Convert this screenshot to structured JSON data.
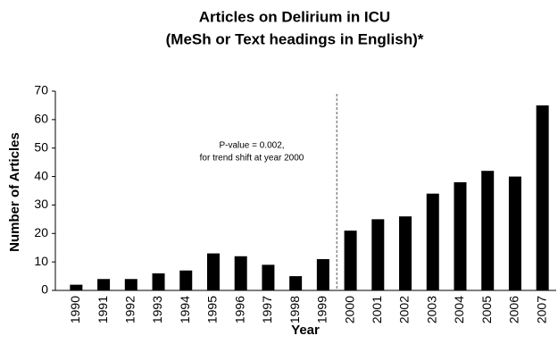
{
  "chart_data": {
    "type": "bar",
    "title": [
      "Articles on Delirium in ICU",
      "(MeSh or Text headings in English)*"
    ],
    "x_label": "Year",
    "y_label": "Number of Articles",
    "annotation": [
      "P-value = 0.002,",
      "for trend shift at year 2000"
    ],
    "categories": [
      "1990",
      "1991",
      "1992",
      "1993",
      "1994",
      "1995",
      "1996",
      "1997",
      "1998",
      "1999",
      "2000",
      "2001",
      "2002",
      "2003",
      "2004",
      "2005",
      "2006",
      "2007"
    ],
    "values": [
      2,
      4,
      4,
      6,
      7,
      13,
      12,
      9,
      5,
      11,
      21,
      25,
      26,
      34,
      38,
      42,
      40,
      65
    ],
    "color": "#000000",
    "ylim": [
      0,
      70
    ],
    "yticks": [
      0,
      10,
      20,
      30,
      40,
      50,
      60,
      70
    ],
    "grid": false
  }
}
